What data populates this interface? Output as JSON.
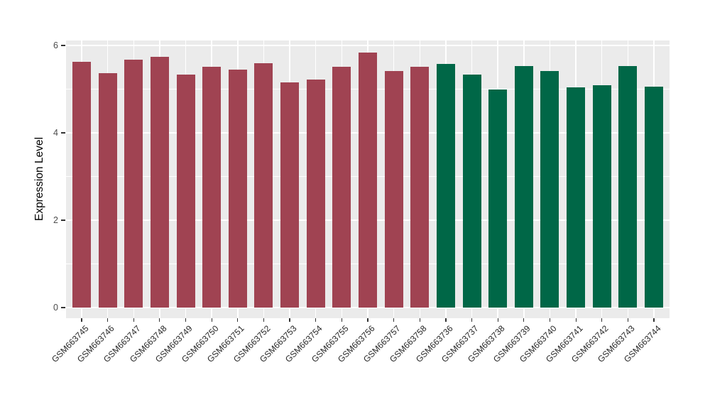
{
  "chart_data": {
    "type": "bar",
    "title": "",
    "xlabel": "",
    "ylabel": "Expression Level",
    "ylim": [
      0,
      6.1
    ],
    "yticks": [
      0,
      2,
      4,
      6
    ],
    "ytick_labels": [
      "0",
      "2",
      "4",
      "6"
    ],
    "grid": "white major and minor gridlines on grey panel",
    "legend_position": "none",
    "panel_background": "#EBEBEB",
    "gridline_color": "#FFFFFF",
    "tick_mark_color": "#333333",
    "y_tick_text_color": "#4D4D4D",
    "x_tick_text_color": "#262626",
    "categories": [
      "GSM663745",
      "GSM663746",
      "GSM663747",
      "GSM663748",
      "GSM663749",
      "GSM663750",
      "GSM663751",
      "GSM663752",
      "GSM663753",
      "GSM663754",
      "GSM663755",
      "GSM663756",
      "GSM663757",
      "GSM663758",
      "GSM663736",
      "GSM663737",
      "GSM663738",
      "GSM663739",
      "GSM663740",
      "GSM663741",
      "GSM663742",
      "GSM663743",
      "GSM663744"
    ],
    "values": [
      5.63,
      5.37,
      5.68,
      5.74,
      5.34,
      5.52,
      5.45,
      5.59,
      5.15,
      5.22,
      5.52,
      5.83,
      5.41,
      5.51,
      5.57,
      5.34,
      4.99,
      5.53,
      5.41,
      5.04,
      5.09,
      5.53,
      5.06
    ],
    "groups": [
      0,
      0,
      0,
      0,
      0,
      0,
      0,
      0,
      0,
      0,
      0,
      0,
      0,
      0,
      1,
      1,
      1,
      1,
      1,
      1,
      1,
      1,
      1
    ],
    "group_colors": [
      "#A04352",
      "#006747"
    ],
    "group_names": [
      "maroon-group",
      "green-group"
    ]
  }
}
